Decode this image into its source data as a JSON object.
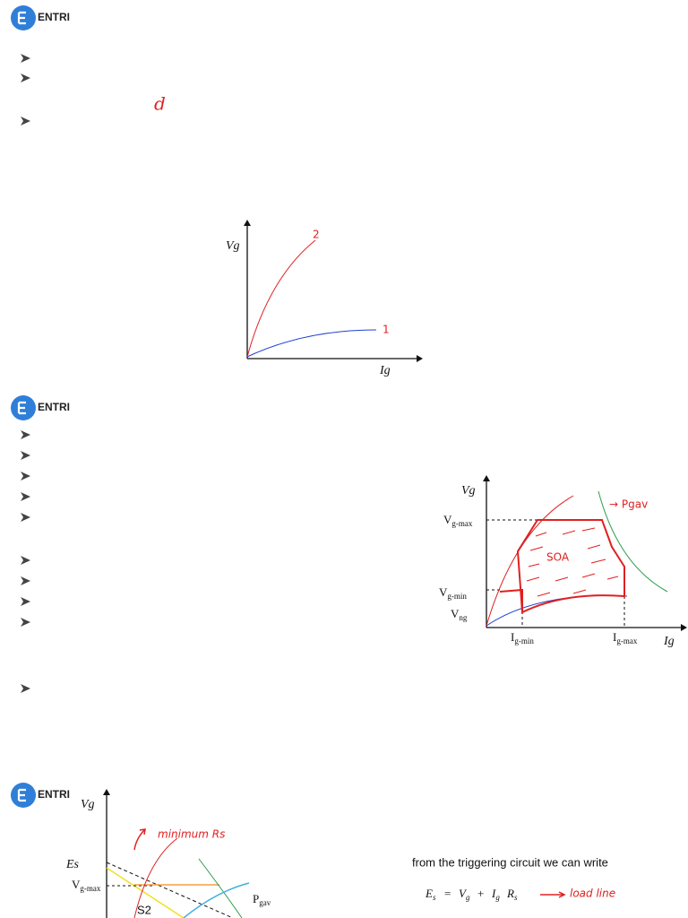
{
  "slides": [
    {
      "logo": "ENTRI",
      "note": "d",
      "graph": {
        "y_label": "Vg",
        "x_label": "Ig",
        "curve_labels": [
          "2",
          "1"
        ]
      }
    },
    {
      "logo": "ENTRI",
      "graph": {
        "y_label": "Vg",
        "x_label": "Ig",
        "power_label": "→ Pgav",
        "region_label": "SOA",
        "y_marks": [
          {
            "base": "V",
            "sub": "g-max"
          },
          {
            "base": "V",
            "sub": "g-min"
          },
          {
            "base": "V",
            "sub": "ng"
          }
        ],
        "x_marks": [
          {
            "base": "I",
            "sub": "g-min"
          },
          {
            "base": "I",
            "sub": "g-max"
          }
        ]
      }
    },
    {
      "logo": "ENTRI",
      "graph": {
        "y_label": "Vg",
        "source_label": "Es",
        "y_mark": {
          "base": "V",
          "sub": "g-max"
        },
        "curve_label": "S2",
        "power_label": {
          "base": "P",
          "sub": "gav"
        },
        "annotation": "minimum Rs"
      },
      "text": "from the triggering circuit we can write",
      "equation": [
        {
          "base": "E",
          "sub": "s"
        },
        "=",
        {
          "base": "V",
          "sub": "g"
        },
        "+",
        {
          "base": "I",
          "sub": "g"
        },
        {
          "base": "R",
          "sub": "s"
        }
      ],
      "equation_note": "load line"
    }
  ]
}
